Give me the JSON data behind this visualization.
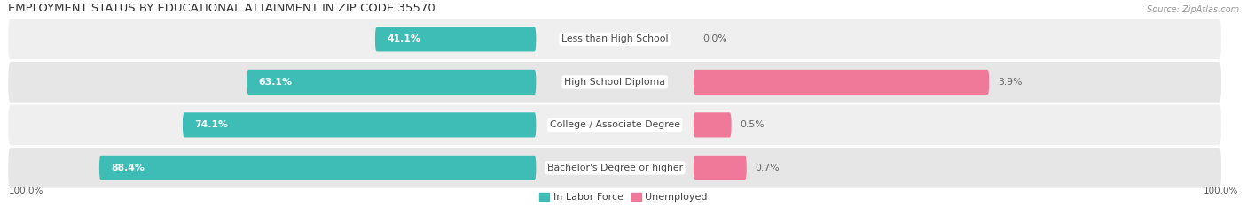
{
  "title": "EMPLOYMENT STATUS BY EDUCATIONAL ATTAINMENT IN ZIP CODE 35570",
  "source": "Source: ZipAtlas.com",
  "categories": [
    "Less than High School",
    "High School Diploma",
    "College / Associate Degree",
    "Bachelor's Degree or higher"
  ],
  "in_labor_force": [
    41.1,
    63.1,
    74.1,
    88.4
  ],
  "unemployed": [
    0.0,
    3.9,
    0.5,
    0.7
  ],
  "bar_color_labor": "#3dbdb5",
  "bar_color_unemployed": "#f07898",
  "row_bg_even": "#efefef",
  "row_bg_odd": "#e6e6e6",
  "title_fontsize": 9.5,
  "label_fontsize": 7.8,
  "tick_fontsize": 7.5,
  "legend_fontsize": 8,
  "axis_label_left": "100.0%",
  "axis_label_right": "100.0%"
}
